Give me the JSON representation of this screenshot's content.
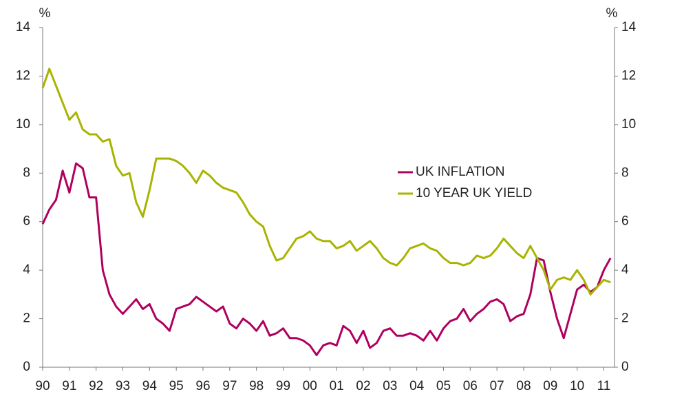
{
  "chart_data": {
    "type": "line",
    "y_label": "%",
    "y2_label": "%",
    "x": [
      1990,
      1990.25,
      1990.5,
      1990.75,
      1991,
      1991.25,
      1991.5,
      1991.75,
      1992,
      1992.25,
      1992.5,
      1992.75,
      1993,
      1993.25,
      1993.5,
      1993.75,
      1994,
      1994.25,
      1994.5,
      1994.75,
      1995,
      1995.25,
      1995.5,
      1995.75,
      1996,
      1996.25,
      1996.5,
      1996.75,
      1997,
      1997.25,
      1997.5,
      1997.75,
      1998,
      1998.25,
      1998.5,
      1998.75,
      1999,
      1999.25,
      1999.5,
      1999.75,
      2000,
      2000.25,
      2000.5,
      2000.75,
      2001,
      2001.25,
      2001.5,
      2001.75,
      2002,
      2002.25,
      2002.5,
      2002.75,
      2003,
      2003.25,
      2003.5,
      2003.75,
      2004,
      2004.25,
      2004.5,
      2004.75,
      2005,
      2005.25,
      2005.5,
      2005.75,
      2006,
      2006.25,
      2006.5,
      2006.75,
      2007,
      2007.25,
      2007.5,
      2007.75,
      2008,
      2008.25,
      2008.5,
      2008.75,
      2009,
      2009.25,
      2009.5,
      2009.75,
      2010,
      2010.25,
      2010.5,
      2010.75,
      2011,
      2011.25
    ],
    "series": [
      {
        "name": "UK INFLATION",
        "color": "#b0005f",
        "values": [
          5.9,
          6.5,
          6.9,
          8.1,
          7.2,
          8.4,
          8.2,
          7.0,
          7.0,
          4.0,
          3.0,
          2.5,
          2.2,
          2.5,
          2.8,
          2.4,
          2.6,
          2.0,
          1.8,
          1.5,
          2.4,
          2.5,
          2.6,
          2.9,
          2.7,
          2.5,
          2.3,
          2.5,
          1.8,
          1.6,
          2.0,
          1.8,
          1.5,
          1.9,
          1.3,
          1.4,
          1.6,
          1.2,
          1.2,
          1.1,
          0.9,
          0.5,
          0.9,
          1.0,
          0.9,
          1.7,
          1.5,
          1.0,
          1.5,
          0.8,
          1.0,
          1.5,
          1.6,
          1.3,
          1.3,
          1.4,
          1.3,
          1.1,
          1.5,
          1.1,
          1.6,
          1.9,
          2.0,
          2.4,
          1.9,
          2.2,
          2.4,
          2.7,
          2.8,
          2.6,
          1.9,
          2.1,
          2.2,
          3.0,
          4.5,
          4.4,
          3.1,
          2.0,
          1.2,
          2.2,
          3.2,
          3.4,
          3.1,
          3.3,
          4.0,
          4.5
        ]
      },
      {
        "name": "10 YEAR UK YIELD",
        "color": "#a8b400",
        "axis": "y2",
        "values": [
          11.5,
          12.3,
          11.6,
          10.9,
          10.2,
          10.5,
          9.8,
          9.6,
          9.6,
          9.3,
          9.4,
          8.3,
          7.9,
          8.0,
          6.8,
          6.2,
          7.3,
          8.6,
          8.6,
          8.6,
          8.5,
          8.3,
          8.0,
          7.6,
          8.1,
          7.9,
          7.6,
          7.4,
          7.3,
          7.2,
          6.8,
          6.3,
          6.0,
          5.8,
          5.0,
          4.4,
          4.5,
          4.9,
          5.3,
          5.4,
          5.6,
          5.3,
          5.2,
          5.2,
          4.9,
          5.0,
          5.2,
          4.8,
          5.0,
          5.2,
          4.9,
          4.5,
          4.3,
          4.2,
          4.5,
          4.9,
          5.0,
          5.1,
          4.9,
          4.8,
          4.5,
          4.3,
          4.3,
          4.2,
          4.3,
          4.6,
          4.5,
          4.6,
          4.9,
          5.3,
          5.0,
          4.7,
          4.5,
          5.0,
          4.5,
          4.0,
          3.2,
          3.6,
          3.7,
          3.6,
          4.0,
          3.6,
          3.0,
          3.3,
          3.6,
          3.5
        ]
      }
    ],
    "xlim": [
      1990,
      2011.4
    ],
    "xticks": [
      {
        "value": 1990,
        "label": "90"
      },
      {
        "value": 1991,
        "label": "91"
      },
      {
        "value": 1992,
        "label": "92"
      },
      {
        "value": 1993,
        "label": "93"
      },
      {
        "value": 1994,
        "label": "94"
      },
      {
        "value": 1995,
        "label": "95"
      },
      {
        "value": 1996,
        "label": "96"
      },
      {
        "value": 1997,
        "label": "97"
      },
      {
        "value": 1998,
        "label": "98"
      },
      {
        "value": 1999,
        "label": "99"
      },
      {
        "value": 2000,
        "label": "00"
      },
      {
        "value": 2001,
        "label": "01"
      },
      {
        "value": 2002,
        "label": "02"
      },
      {
        "value": 2003,
        "label": "03"
      },
      {
        "value": 2004,
        "label": "04"
      },
      {
        "value": 2005,
        "label": "05"
      },
      {
        "value": 2006,
        "label": "06"
      },
      {
        "value": 2007,
        "label": "07"
      },
      {
        "value": 2008,
        "label": "08"
      },
      {
        "value": 2009,
        "label": "09"
      },
      {
        "value": 2010,
        "label": "10"
      },
      {
        "value": 2011,
        "label": "11"
      }
    ],
    "ylim": [
      0,
      14
    ],
    "yticks": [
      0,
      2,
      4,
      6,
      8,
      10,
      12,
      14
    ],
    "y2lim": [
      0,
      14
    ],
    "y2ticks": [
      0,
      2,
      4,
      6,
      8,
      10,
      12,
      14
    ],
    "grid": false
  }
}
